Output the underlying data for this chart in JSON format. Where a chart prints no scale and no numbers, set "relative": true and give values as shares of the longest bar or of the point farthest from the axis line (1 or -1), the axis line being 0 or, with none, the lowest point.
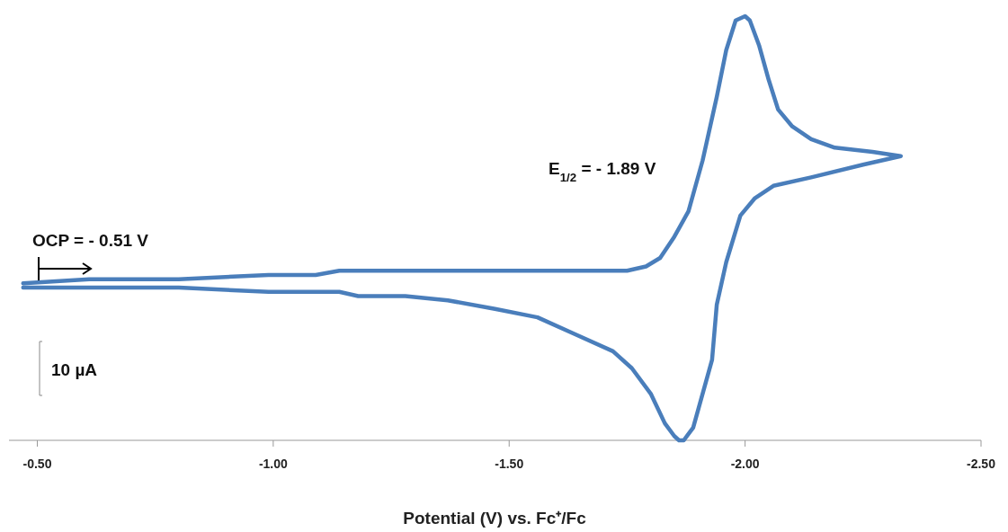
{
  "chart_data": {
    "type": "line",
    "relative": true,
    "xlabel": "Potential (V) vs. Fc⁺/Fc",
    "xlim": [
      -0.44,
      -2.5
    ],
    "xticks": [
      {
        "value": -0.5,
        "label": "-0.50"
      },
      {
        "value": -1,
        "label": "-1.00"
      },
      {
        "value": -1.5,
        "label": "-1.50"
      },
      {
        "value": -2,
        "label": "-2.00"
      },
      {
        "value": -2.5,
        "label": "-2.50"
      }
    ],
    "annotations": [
      "OCP = - 0.51 V",
      "E$_{1/2}$ = - 1.89 V",
      "10 µA"
    ],
    "series": [
      {
        "color": "#4a7ebb",
        "x": [
          -0.47,
          -0.61,
          -0.8,
          -0.99,
          -1.09,
          -1.14,
          -1.18,
          -1.22,
          -1.28,
          -1.47,
          -1.66,
          -1.75,
          -1.79,
          -1.82,
          -1.85,
          -1.88,
          -1.91,
          -1.94,
          -1.96,
          -1.98,
          -2.0,
          -2.01,
          -2.03,
          -2.05,
          -2.07,
          -2.1,
          -2.14,
          -2.19,
          -2.27,
          -2.33,
          -2.33,
          -2.25,
          -2.14,
          -2.06,
          -2.02,
          -1.99,
          -1.96,
          -1.94,
          -1.93,
          -1.89,
          -1.87,
          -1.86,
          -1.85,
          -1.83,
          -1.8,
          -1.76,
          -1.72,
          -1.64,
          -1.56,
          -1.47,
          -1.37,
          -1.28,
          -1.22,
          -1.18,
          -1.14,
          -1.09,
          -0.99,
          -0.8,
          -0.61,
          -0.47
        ],
        "values": [
          0.37,
          0.38,
          0.38,
          0.39,
          0.39,
          0.4,
          0.4,
          0.4,
          0.4,
          0.4,
          0.4,
          0.4,
          0.41,
          0.43,
          0.48,
          0.54,
          0.66,
          0.81,
          0.92,
          0.99,
          1,
          0.99,
          0.93,
          0.85,
          0.78,
          0.74,
          0.71,
          0.69,
          0.68,
          0.67,
          0.67,
          0.65,
          0.62,
          0.6,
          0.57,
          0.53,
          0.42,
          0.32,
          0.19,
          0.03,
          0.0,
          0,
          0.01,
          0.04,
          0.11,
          0.17,
          0.21,
          0.25,
          0.29,
          0.31,
          0.33,
          0.34,
          0.34,
          0.34,
          0.35,
          0.35,
          0.35,
          0.36,
          0.36,
          0.36
        ]
      }
    ]
  }
}
